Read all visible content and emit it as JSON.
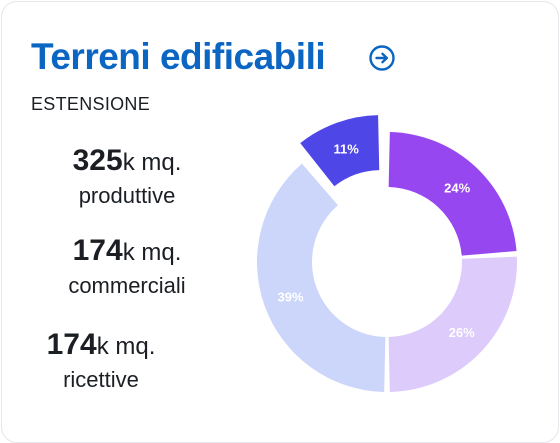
{
  "header": {
    "title": "Terreni edificabili",
    "subtitle": "ESTENSIONE"
  },
  "stats": [
    {
      "value": "325",
      "unit": "k mq.",
      "label": "produttive"
    },
    {
      "value": "174",
      "unit": "k mq.",
      "label": "commerciali"
    },
    {
      "value": "174",
      "unit": "k mq.",
      "label": "ricettive"
    }
  ],
  "icons": {
    "navigate": "arrow-right-circle-icon"
  },
  "colors": {
    "title": "#0a66c2",
    "seg_11": "#4f46e8",
    "seg_24": "#9747f0",
    "seg_26": "#dccbfb",
    "seg_39": "#ccd6fb"
  },
  "chart_data": {
    "type": "pie",
    "donut": true,
    "slices": [
      {
        "label": "11%",
        "value": 11,
        "color": "#4f46e8"
      },
      {
        "label": "24%",
        "value": 24,
        "color": "#9747f0"
      },
      {
        "label": "26%",
        "value": 26,
        "color": "#dccbfb"
      },
      {
        "label": "39%",
        "value": 39,
        "color": "#ccd6fb"
      }
    ]
  }
}
